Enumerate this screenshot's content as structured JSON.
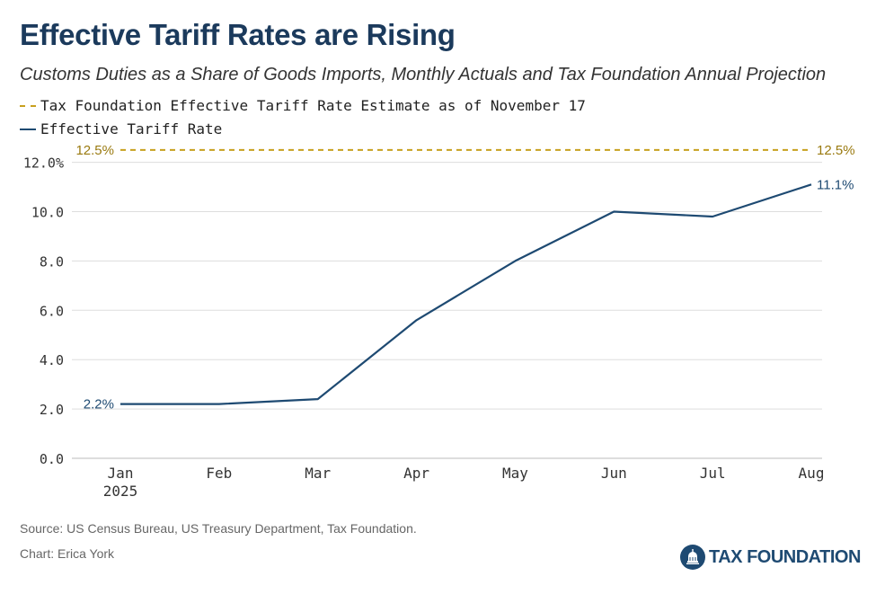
{
  "header": {
    "title": "Effective Tariff Rates are Rising",
    "subtitle": "Customs Duties as a Share of Goods Imports, Monthly Actuals and Tax Foundation Annual Projection"
  },
  "legend": {
    "estimate_label": "Tax Foundation Effective Tariff Rate Estimate as of November 17",
    "rate_label": "Effective Tariff Rate"
  },
  "footer": {
    "source": "Source: US Census Bureau, US Treasury Department, Tax Foundation.",
    "credit": "Chart: Erica York",
    "logo_text": "TAX FOUNDATION"
  },
  "colors": {
    "title": "#1b3a5c",
    "line": "#1e4a72",
    "estimate": "#c8a01e",
    "grid": "#dddddd"
  },
  "chart_data": {
    "type": "line",
    "title": "Effective Tariff Rates are Rising",
    "subtitle": "Customs Duties as a Share of Goods Imports, Monthly Actuals and Tax Foundation Annual Projection",
    "categories": [
      "Jan",
      "Feb",
      "Mar",
      "Apr",
      "May",
      "Jun",
      "Jul",
      "Aug"
    ],
    "first_category_sublabel": "2025",
    "series": [
      {
        "name": "Effective Tariff Rate",
        "values": [
          2.2,
          2.2,
          2.4,
          5.6,
          8.0,
          10.0,
          9.8,
          11.1
        ],
        "start_label": "2.2%",
        "end_label": "11.1%"
      }
    ],
    "reference_line": {
      "name": "Tax Foundation Effective Tariff Rate Estimate as of November 17",
      "value": 12.5,
      "label": "12.5%",
      "style": "dashed"
    },
    "yticks": [
      "0.0",
      "2.0",
      "4.0",
      "6.0",
      "8.0",
      "10.0",
      "12.0%"
    ],
    "ytick_values": [
      0,
      2,
      4,
      6,
      8,
      10,
      12
    ],
    "ylim": [
      0,
      12.5
    ],
    "grid": true,
    "legend_position": "top-left",
    "xlabel": "",
    "ylabel": ""
  }
}
